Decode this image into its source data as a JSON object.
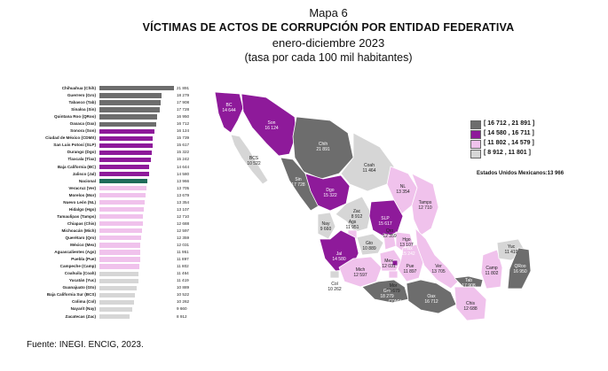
{
  "title": "Mapa 6",
  "subtitle": "VÍCTIMAS DE ACTOS DE CORRUPCIÓN POR ENTIDAD FEDERATIVA",
  "period": "enero-diciembre 2023",
  "unit_note": "(tasa por cada 100 mil habitantes)",
  "source": "Fuente: INEGI. ENCIG, 2023.",
  "legend": {
    "items": [
      {
        "label": "[ 16 712 , 21 891 ]",
        "color": "#6d6d6d"
      },
      {
        "label": "[ 14 580 , 16 711 ]",
        "color": "#8e1a9a"
      },
      {
        "label": "[ 11 802 , 14 579 ]",
        "color": "#f0c2ec"
      },
      {
        "label": "[   8 912 , 11 801 ]",
        "color": "#d6d6d6"
      }
    ],
    "national_note": "Estados Unidos Mexicanos:13 966"
  },
  "colors": {
    "national": "#1e6b5a"
  },
  "chart_data": {
    "type": "bar",
    "orientation": "horizontal",
    "categories": [
      "Chihuahua (Chih)",
      "Guerrero (Gro)",
      "Tabasco (Tab)",
      "Sinaloa (Sin)",
      "Quintana Roo (QRoo)",
      "Oaxaca (Oax)",
      "Sonora (Son)",
      "Ciudad de México (CDMX)",
      "San Luis Potosí (SLP)",
      "Durango (Dgo)",
      "Tlaxcala (Tlax)",
      "Baja California (BC)",
      "Jalisco (Jal)",
      "Nacional",
      "Veracruz (Ver)",
      "Morelos (Mor)",
      "Nuevo León (NL)",
      "Hidalgo (Hgo)",
      "Tamaulipas (Tamps)",
      "Chiapas (Chis)",
      "Michoacán (Mich)",
      "Querétaro (Qro)",
      "México (Mex)",
      "Aguascalientes (Ags)",
      "Puebla (Pue)",
      "Campeche (Camp)",
      "Coahuila (Coah)",
      "Yucatán (Yuc)",
      "Guanajuato (Gto)",
      "Baja California Sur (BCS)",
      "Colima (Col)",
      "Nayarit (Nay)",
      "Zacatecas (Zac)"
    ],
    "values": [
      21891,
      18279,
      17908,
      17728,
      16950,
      16712,
      16124,
      15739,
      15617,
      15322,
      15242,
      14644,
      14580,
      13966,
      13705,
      13679,
      13354,
      13107,
      12710,
      12688,
      12597,
      12359,
      12031,
      11951,
      11897,
      11802,
      11464,
      11419,
      10889,
      10522,
      10262,
      9660,
      8912
    ],
    "value_labels": [
      "21 891",
      "18 279",
      "17 908",
      "17 728",
      "16 950",
      "16 712",
      "16 124",
      "15 739",
      "15 617",
      "15 322",
      "15 242",
      "14 644",
      "14 580",
      "13 966",
      "13 705",
      "13 679",
      "13 354",
      "13 107",
      "12 710",
      "12 688",
      "12 597",
      "12 359",
      "12 031",
      "11 951",
      "11 897",
      "11 802",
      "11 464",
      "11 419",
      "10 889",
      "10 522",
      "10 262",
      "9 660",
      "8 912"
    ],
    "xlim": [
      0,
      21891
    ]
  },
  "map_labels": [
    {
      "abbr": "BC",
      "value": "14 644"
    },
    {
      "abbr": "Son",
      "value": "16 124"
    },
    {
      "abbr": "Chih",
      "value": "21 891"
    },
    {
      "abbr": "Coah",
      "value": "11 464"
    },
    {
      "abbr": "BCS",
      "value": "10 522"
    },
    {
      "abbr": "Sin",
      "value": "17 728"
    },
    {
      "abbr": "Dgo",
      "value": "15 322"
    },
    {
      "abbr": "NL",
      "value": "13 354"
    },
    {
      "abbr": "Tamps",
      "value": "12 710"
    },
    {
      "abbr": "Zac",
      "value": "8 912"
    },
    {
      "abbr": "SLP",
      "value": "15 617"
    },
    {
      "abbr": "Ags",
      "value": "11 951"
    },
    {
      "abbr": "Nay",
      "value": "9 660"
    },
    {
      "abbr": "Gto",
      "value": "10 889"
    },
    {
      "abbr": "Qro",
      "value": "12 359"
    },
    {
      "abbr": "Hgo",
      "value": "13 107"
    },
    {
      "abbr": "Jal",
      "value": "14 580"
    },
    {
      "abbr": "Col",
      "value": "10 262"
    },
    {
      "abbr": "Mich",
      "value": "12 597"
    },
    {
      "abbr": "Mex",
      "value": "12 031"
    },
    {
      "abbr": "CDMX",
      "value": "15 739"
    },
    {
      "abbr": "Mor",
      "value": "13 679"
    },
    {
      "abbr": "Tlax",
      "value": "15 242"
    },
    {
      "abbr": "Pue",
      "value": "11 897"
    },
    {
      "abbr": "Ver",
      "value": "13 705"
    },
    {
      "abbr": "Gro",
      "value": "18 279"
    },
    {
      "abbr": "Oax",
      "value": "16 712"
    },
    {
      "abbr": "Chis",
      "value": "12 688"
    },
    {
      "abbr": "Tab",
      "value": "17 908"
    },
    {
      "abbr": "Camp",
      "value": "11 802"
    },
    {
      "abbr": "Yuc",
      "value": "11 419"
    },
    {
      "abbr": "QRoo",
      "value": "16 950"
    }
  ]
}
